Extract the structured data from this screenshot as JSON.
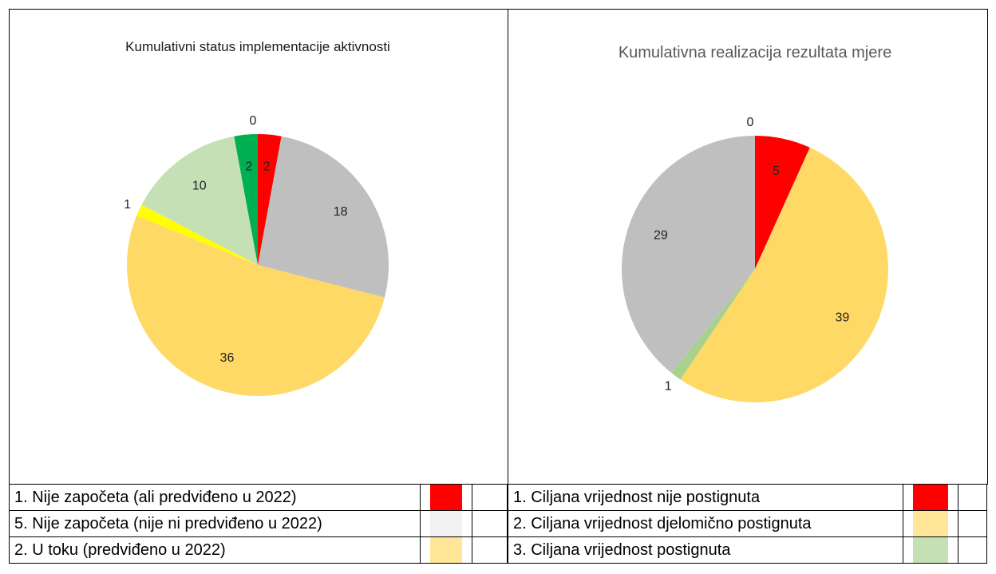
{
  "chart_data": [
    {
      "type": "pie",
      "title": "Kumulativni status implementacije aktivnosti",
      "values": [
        2,
        18,
        36,
        1,
        10,
        2,
        0
      ],
      "colors": [
        "#ff0000",
        "#bfbfbf",
        "#ffd966",
        "#ffff00",
        "#c5e0b4",
        "#00b050",
        "#7030a0"
      ]
    },
    {
      "type": "pie",
      "title": "Kumulativna realizacija rezultata mjere",
      "values": [
        5,
        39,
        1,
        29,
        0
      ],
      "colors": [
        "#ff0000",
        "#ffd966",
        "#a9d18e",
        "#bfbfbf",
        "#00b050"
      ]
    }
  ],
  "legend_tables": [
    {
      "rows": [
        {
          "label": "1. Nije započeta (ali predviđeno u 2022)",
          "color": "#ff0000"
        },
        {
          "label": "5. Nije započeta (nije ni predviđeno u 2022)",
          "color": "#f2f2f2"
        },
        {
          "label": "2. U toku (predviđeno u 2022)",
          "color": "#ffe699"
        }
      ]
    },
    {
      "rows": [
        {
          "label": "1. Ciljana vrijednost nije postignuta",
          "color": "#ff0000"
        },
        {
          "label": "2. Ciljana vrijednost djelomično postignuta",
          "color": "#ffe699"
        },
        {
          "label": "3. Ciljana vrijednost postignuta",
          "color": "#c5e0b4"
        }
      ]
    }
  ]
}
